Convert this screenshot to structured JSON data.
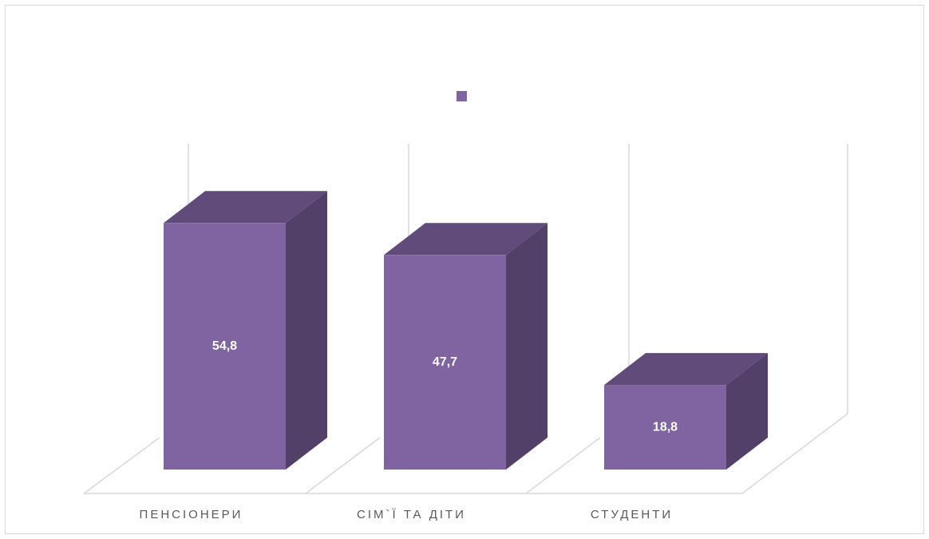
{
  "chart_data": {
    "type": "bar3d",
    "categories": [
      "ПЕНСІОНЕРИ",
      "СІМ`Ї ТА ДІТИ",
      "СТУДЕНТИ"
    ],
    "values": [
      54.8,
      47.7,
      18.8
    ],
    "value_labels": [
      "54,8",
      "47,7",
      "18,8"
    ],
    "color": "#8064a2",
    "ylim": [
      0,
      60
    ]
  }
}
